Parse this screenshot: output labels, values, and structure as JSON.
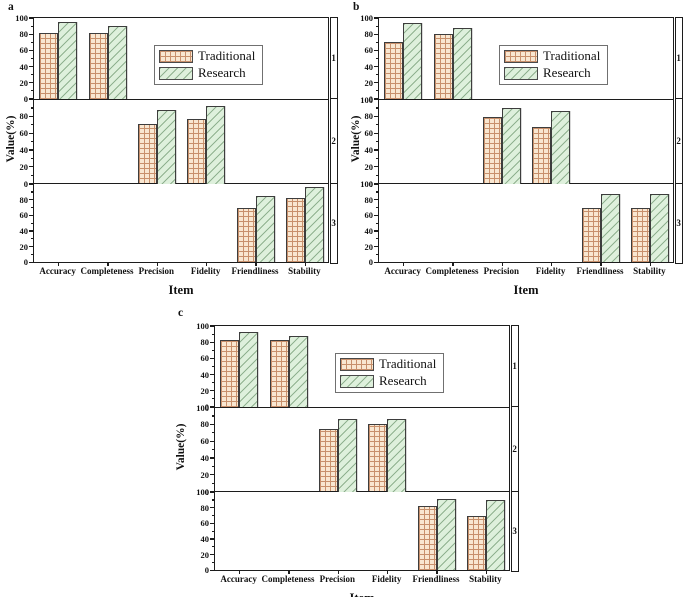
{
  "figure": {
    "y_axis_label": "Value(%)",
    "x_axis_label": "Item",
    "categories": [
      "Accuracy",
      "Completeness",
      "Precision",
      "Fidelity",
      "Friendliness",
      "Stability"
    ],
    "legend": {
      "position": "upper-middle-of-first-subplot",
      "items": [
        {
          "label": "Traditional",
          "swatch": "grid-hatch"
        },
        {
          "label": "Research",
          "swatch": "diagonal-hatch"
        }
      ]
    },
    "colors": {
      "traditional_fill": "#f9e7d1",
      "traditional_hatch": "#c8906c",
      "research_fill": "#def0dc",
      "research_hatch": "#8fb18f",
      "bar_border": "#3d3d3d",
      "axis": "#1c1c1c"
    }
  },
  "chart_data": [
    {
      "panel": "a",
      "type": "bar",
      "xlabel": "Item",
      "ylabel": "Value(%)",
      "ylim": [
        0,
        100
      ],
      "subplots": [
        {
          "strip_label": "1",
          "yticks": [
            100,
            80,
            60,
            40,
            20,
            0
          ],
          "bars": [
            {
              "category": "Accuracy",
              "traditional": 82,
              "research": 95
            },
            {
              "category": "Completeness",
              "traditional": 81,
              "research": 90
            }
          ]
        },
        {
          "strip_label": "2",
          "yticks": [
            80,
            60,
            40,
            20,
            0
          ],
          "bars": [
            {
              "category": "Precision",
              "traditional": 71,
              "research": 88
            },
            {
              "category": "Fidelity",
              "traditional": 77,
              "research": 92
            }
          ]
        },
        {
          "strip_label": "3",
          "yticks": [
            80,
            60,
            40,
            20,
            0
          ],
          "bars": [
            {
              "category": "Friendliness",
              "traditional": 69,
              "research": 85
            },
            {
              "category": "Stability",
              "traditional": 82,
              "research": 97
            }
          ]
        }
      ]
    },
    {
      "panel": "b",
      "type": "bar",
      "xlabel": "Item",
      "ylabel": "Value(%)",
      "ylim": [
        0,
        100
      ],
      "subplots": [
        {
          "strip_label": "1",
          "yticks": [
            100,
            80,
            60,
            40,
            20,
            0
          ],
          "bars": [
            {
              "category": "Accuracy",
              "traditional": 71,
              "research": 94
            },
            {
              "category": "Completeness",
              "traditional": 80,
              "research": 88
            }
          ]
        },
        {
          "strip_label": "2",
          "yticks": [
            100,
            80,
            60,
            40,
            20,
            0
          ],
          "bars": [
            {
              "category": "Precision",
              "traditional": 79,
              "research": 90
            },
            {
              "category": "Fidelity",
              "traditional": 68,
              "research": 87
            }
          ]
        },
        {
          "strip_label": "3",
          "yticks": [
            100,
            80,
            60,
            40,
            20,
            0
          ],
          "bars": [
            {
              "category": "Friendliness",
              "traditional": 70,
              "research": 87
            },
            {
              "category": "Stability",
              "traditional": 70,
              "research": 87
            }
          ]
        }
      ]
    },
    {
      "panel": "c",
      "type": "bar",
      "xlabel": "Item",
      "ylabel": "Value(%)",
      "ylim": [
        0,
        100
      ],
      "subplots": [
        {
          "strip_label": "1",
          "yticks": [
            100,
            80,
            60,
            40,
            20,
            0
          ],
          "bars": [
            {
              "category": "Accuracy",
              "traditional": 83,
              "research": 93
            },
            {
              "category": "Completeness",
              "traditional": 83,
              "research": 88
            }
          ]
        },
        {
          "strip_label": "2",
          "yticks": [
            100,
            80,
            60,
            40,
            20,
            0
          ],
          "bars": [
            {
              "category": "Precision",
              "traditional": 74,
              "research": 87
            },
            {
              "category": "Fidelity",
              "traditional": 81,
              "research": 86
            }
          ]
        },
        {
          "strip_label": "3",
          "yticks": [
            100,
            80,
            60,
            40,
            20,
            0
          ],
          "bars": [
            {
              "category": "Friendliness",
              "traditional": 82,
              "research": 91
            },
            {
              "category": "Stability",
              "traditional": 70,
              "research": 90
            }
          ]
        }
      ]
    }
  ]
}
